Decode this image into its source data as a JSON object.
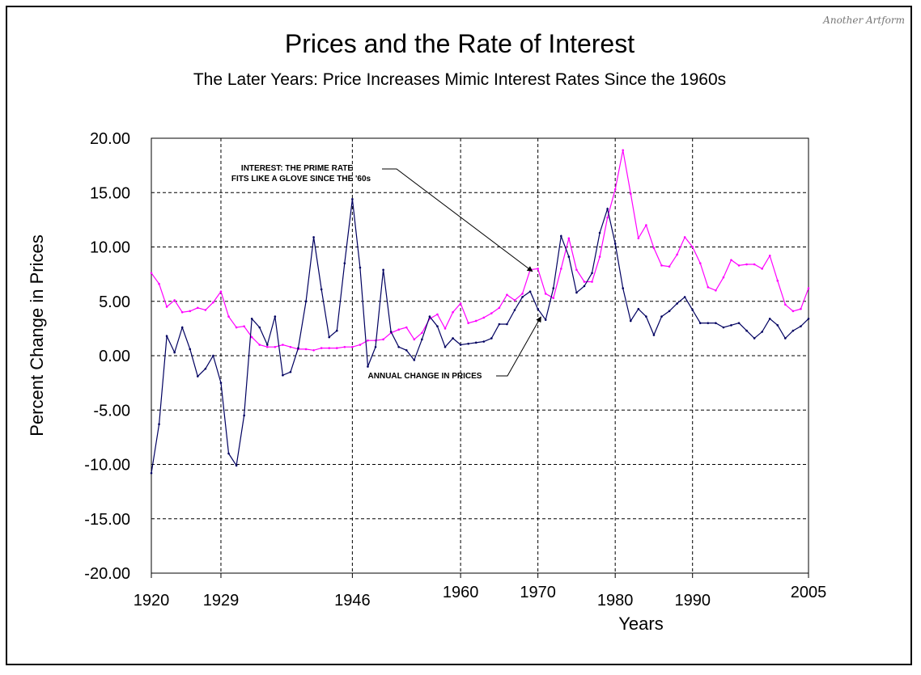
{
  "watermark": "Another Artform",
  "chart_data": {
    "type": "line",
    "title": "Prices and the Rate of Interest",
    "subtitle": "The Later Years: Price Increases Mimic Interest Rates Since the 1960s",
    "ylabel": "Percent Change in Prices",
    "xlabel": "Years",
    "xlim": [
      1920,
      2005
    ],
    "ylim": [
      -20,
      20
    ],
    "grid": true,
    "x_ticks": [
      1920,
      1929,
      1946,
      1960,
      1970,
      1980,
      1990,
      2005
    ],
    "x_tick_labels": [
      "1920",
      "1929",
      "1946",
      "1960",
      "1970",
      "1980",
      "1990",
      "2005"
    ],
    "y_ticks": [
      20,
      15,
      10,
      5,
      0,
      -5,
      -10,
      -15,
      -20
    ],
    "y_tick_labels": [
      "20.00",
      "15.00",
      "10.00",
      "5.00",
      "0.00",
      "-5.00",
      "-10.00",
      "-15.00",
      "-20.00"
    ],
    "series": [
      {
        "color": "#ff00ff",
        "x": [
          1920,
          1921,
          1922,
          1923,
          1924,
          1925,
          1926,
          1927,
          1928,
          1929,
          1930,
          1931,
          1932,
          1933,
          1934,
          1935,
          1936,
          1937,
          1938,
          1939,
          1940,
          1941,
          1942,
          1943,
          1944,
          1945,
          1946,
          1947,
          1948,
          1949,
          1950,
          1951,
          1952,
          1953,
          1954,
          1955,
          1956,
          1957,
          1958,
          1959,
          1960,
          1961,
          1962,
          1963,
          1964,
          1965,
          1966,
          1967,
          1968,
          1969,
          1970,
          1971,
          1972,
          1973,
          1974,
          1975,
          1976,
          1977,
          1978,
          1979,
          1980,
          1981,
          1982,
          1983,
          1984,
          1985,
          1986,
          1987,
          1988,
          1989,
          1990,
          1991,
          1992,
          1993,
          1994,
          1995,
          1996,
          1997,
          1998,
          1999,
          2000,
          2001,
          2002,
          2003,
          2004,
          2005
        ],
        "values": [
          7.6,
          6.6,
          4.5,
          5.1,
          4.0,
          4.1,
          4.4,
          4.2,
          4.9,
          5.9,
          3.6,
          2.6,
          2.7,
          1.7,
          1.0,
          0.8,
          0.8,
          1.0,
          0.8,
          0.6,
          0.6,
          0.5,
          0.7,
          0.7,
          0.7,
          0.8,
          0.8,
          1.0,
          1.4,
          1.4,
          1.5,
          2.1,
          2.4,
          2.6,
          1.5,
          2.1,
          3.4,
          3.8,
          2.5,
          4.0,
          4.8,
          3.0,
          3.2,
          3.5,
          3.9,
          4.4,
          5.6,
          5.1,
          5.7,
          7.9,
          8.0,
          5.7,
          5.3,
          8.0,
          10.8,
          7.9,
          6.8,
          6.8,
          9.1,
          12.7,
          15.3,
          18.9,
          14.9,
          10.8,
          12.0,
          9.9,
          8.3,
          8.2,
          9.3,
          10.9,
          10.0,
          8.5,
          6.3,
          6.0,
          7.2,
          8.8,
          8.3,
          8.4,
          8.4,
          8.0,
          9.2,
          6.9,
          4.7,
          4.1,
          4.3,
          6.2
        ]
      },
      {
        "color": "#000060",
        "x": [
          1920,
          1921,
          1922,
          1923,
          1924,
          1925,
          1926,
          1927,
          1928,
          1929,
          1930,
          1931,
          1932,
          1933,
          1934,
          1935,
          1936,
          1937,
          1938,
          1939,
          1940,
          1941,
          1942,
          1943,
          1944,
          1945,
          1946,
          1947,
          1948,
          1949,
          1950,
          1951,
          1952,
          1953,
          1954,
          1955,
          1956,
          1957,
          1958,
          1959,
          1960,
          1961,
          1962,
          1963,
          1964,
          1965,
          1966,
          1967,
          1968,
          1969,
          1970,
          1971,
          1972,
          1973,
          1974,
          1975,
          1976,
          1977,
          1978,
          1979,
          1980,
          1981,
          1982,
          1983,
          1984,
          1985,
          1986,
          1987,
          1988,
          1989,
          1990,
          1991,
          1992,
          1993,
          1994,
          1995,
          1996,
          1997,
          1998,
          1999,
          2000,
          2001,
          2002,
          2003,
          2004,
          2005
        ],
        "values": [
          -10.8,
          -6.3,
          1.8,
          0.3,
          2.6,
          0.6,
          -1.9,
          -1.2,
          0.0,
          -2.5,
          -9.0,
          -10.1,
          -5.5,
          3.4,
          2.6,
          1.0,
          3.6,
          -1.8,
          -1.5,
          0.7,
          5.0,
          10.9,
          6.1,
          1.7,
          2.3,
          8.5,
          14.4,
          8.1,
          -1.0,
          0.8,
          7.9,
          2.2,
          0.8,
          0.5,
          -0.4,
          1.5,
          3.6,
          2.7,
          0.8,
          1.6,
          1.0,
          1.1,
          1.2,
          1.3,
          1.6,
          2.9,
          2.9,
          4.2,
          5.4,
          5.9,
          4.3,
          3.3,
          6.2,
          11.0,
          9.1,
          5.8,
          6.4,
          7.6,
          11.3,
          13.5,
          10.3,
          6.2,
          3.2,
          4.3,
          3.6,
          1.9,
          3.6,
          4.1,
          4.8,
          5.4,
          4.2,
          3.0,
          3.0,
          3.0,
          2.6,
          2.8,
          3.0,
          2.3,
          1.6,
          2.2,
          3.4,
          2.8,
          1.6,
          2.3,
          2.7,
          3.4
        ]
      }
    ],
    "annotations": [
      {
        "lines": [
          "INTEREST: THE PRIME RATE",
          "FITS LIKE A GLOVE SINCE THE '60s"
        ],
        "points_to": [
          1969.5,
          7.9
        ]
      },
      {
        "lines": [
          "ANNUAL CHANGE IN PRICES"
        ],
        "points_to": [
          1970.5,
          3.8
        ]
      }
    ]
  }
}
